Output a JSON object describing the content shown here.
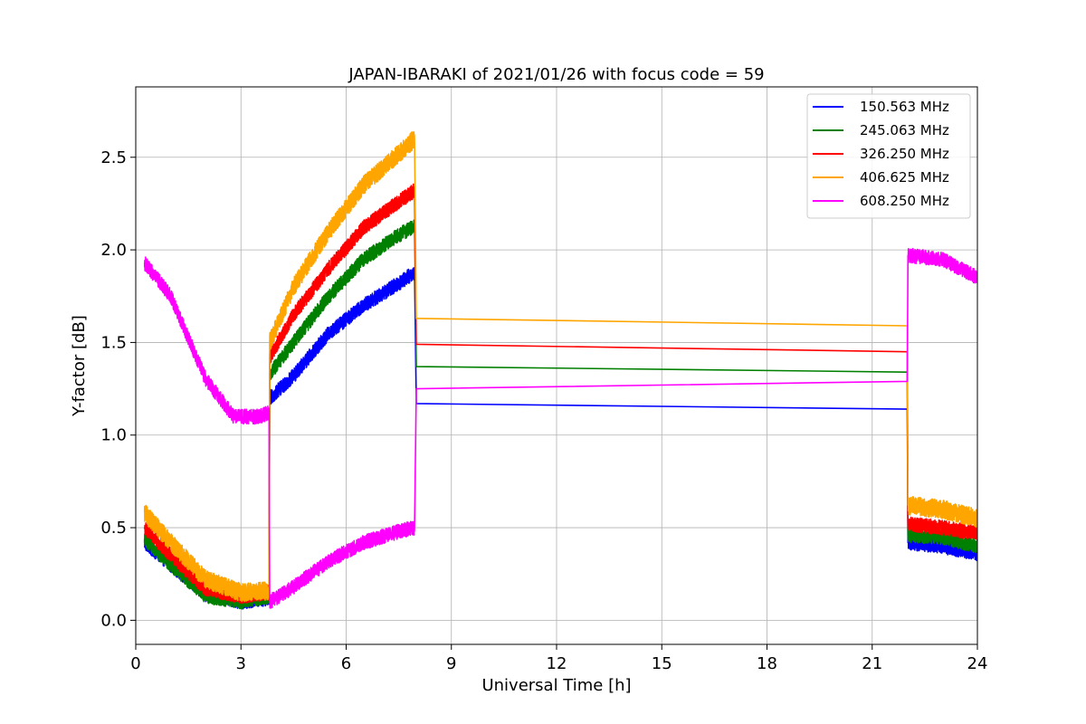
{
  "chart_data": {
    "type": "line",
    "title": "JAPAN-IBARAKI of 2021/01/26 with focus code = 59",
    "xlabel": "Universal Time [h]",
    "ylabel": "Y-factor [dB]",
    "xlim": [
      0,
      24
    ],
    "ylim": [
      -0.13,
      2.88
    ],
    "xticks": [
      0,
      3,
      6,
      9,
      12,
      15,
      18,
      21,
      24
    ],
    "yticks": [
      0.0,
      0.5,
      1.0,
      1.5,
      2.0,
      2.5
    ],
    "xtick_labels": [
      "0",
      "3",
      "6",
      "9",
      "12",
      "15",
      "18",
      "21",
      "24"
    ],
    "ytick_labels": [
      "0.0",
      "0.5",
      "1.0",
      "1.5",
      "2.0",
      "2.5"
    ],
    "grid": true,
    "legend_position": "top-right",
    "series": [
      {
        "name": "150.563 MHz",
        "color": "#0000ff",
        "noise": 0.04,
        "points": [
          [
            0.25,
            0.42
          ],
          [
            1.0,
            0.3
          ],
          [
            2.0,
            0.14
          ],
          [
            3.0,
            0.1
          ],
          [
            3.8,
            0.12
          ],
          [
            3.82,
            1.2
          ],
          [
            4.5,
            1.32
          ],
          [
            5.5,
            1.55
          ],
          [
            6.5,
            1.7
          ],
          [
            7.5,
            1.82
          ],
          [
            7.95,
            1.88
          ],
          [
            8.0,
            1.17
          ],
          [
            22.0,
            1.14
          ],
          [
            22.02,
            0.42
          ],
          [
            23.0,
            0.4
          ],
          [
            24.0,
            0.36
          ]
        ]
      },
      {
        "name": "245.063 MHz",
        "color": "#008000",
        "noise": 0.04,
        "points": [
          [
            0.25,
            0.44
          ],
          [
            1.0,
            0.3
          ],
          [
            2.0,
            0.13
          ],
          [
            3.0,
            0.1
          ],
          [
            3.8,
            0.13
          ],
          [
            3.82,
            1.33
          ],
          [
            4.5,
            1.5
          ],
          [
            5.5,
            1.75
          ],
          [
            6.5,
            1.95
          ],
          [
            7.5,
            2.08
          ],
          [
            7.95,
            2.13
          ],
          [
            8.0,
            1.37
          ],
          [
            22.0,
            1.34
          ],
          [
            22.02,
            0.46
          ],
          [
            23.0,
            0.45
          ],
          [
            24.0,
            0.4
          ]
        ]
      },
      {
        "name": "326.250 MHz",
        "color": "#ff0000",
        "noise": 0.04,
        "points": [
          [
            0.25,
            0.5
          ],
          [
            1.0,
            0.35
          ],
          [
            2.0,
            0.17
          ],
          [
            3.0,
            0.13
          ],
          [
            3.8,
            0.15
          ],
          [
            3.82,
            1.42
          ],
          [
            4.5,
            1.65
          ],
          [
            5.5,
            1.9
          ],
          [
            6.5,
            2.12
          ],
          [
            7.5,
            2.26
          ],
          [
            7.95,
            2.32
          ],
          [
            8.0,
            1.49
          ],
          [
            22.0,
            1.45
          ],
          [
            22.02,
            0.52
          ],
          [
            23.0,
            0.5
          ],
          [
            24.0,
            0.47
          ]
        ]
      },
      {
        "name": "406.625 MHz",
        "color": "#ffa500",
        "noise": 0.05,
        "points": [
          [
            0.25,
            0.58
          ],
          [
            1.0,
            0.42
          ],
          [
            2.0,
            0.22
          ],
          [
            3.0,
            0.15
          ],
          [
            3.8,
            0.16
          ],
          [
            3.82,
            1.5
          ],
          [
            4.5,
            1.8
          ],
          [
            5.5,
            2.1
          ],
          [
            6.5,
            2.35
          ],
          [
            7.5,
            2.52
          ],
          [
            7.95,
            2.6
          ],
          [
            8.0,
            1.63
          ],
          [
            22.0,
            1.59
          ],
          [
            22.02,
            0.62
          ],
          [
            23.0,
            0.6
          ],
          [
            24.0,
            0.55
          ]
        ]
      },
      {
        "name": "608.250 MHz",
        "color": "#ff00ff",
        "noise": 0.04,
        "points": [
          [
            0.25,
            1.93
          ],
          [
            1.0,
            1.75
          ],
          [
            2.0,
            1.3
          ],
          [
            2.8,
            1.1
          ],
          [
            3.5,
            1.1
          ],
          [
            3.8,
            1.12
          ],
          [
            3.82,
            0.1
          ],
          [
            4.5,
            0.18
          ],
          [
            5.5,
            0.32
          ],
          [
            6.5,
            0.42
          ],
          [
            7.5,
            0.48
          ],
          [
            7.95,
            0.5
          ],
          [
            8.0,
            1.25
          ],
          [
            22.0,
            1.29
          ],
          [
            22.02,
            1.97
          ],
          [
            23.0,
            1.95
          ],
          [
            24.0,
            1.85
          ]
        ]
      }
    ]
  }
}
